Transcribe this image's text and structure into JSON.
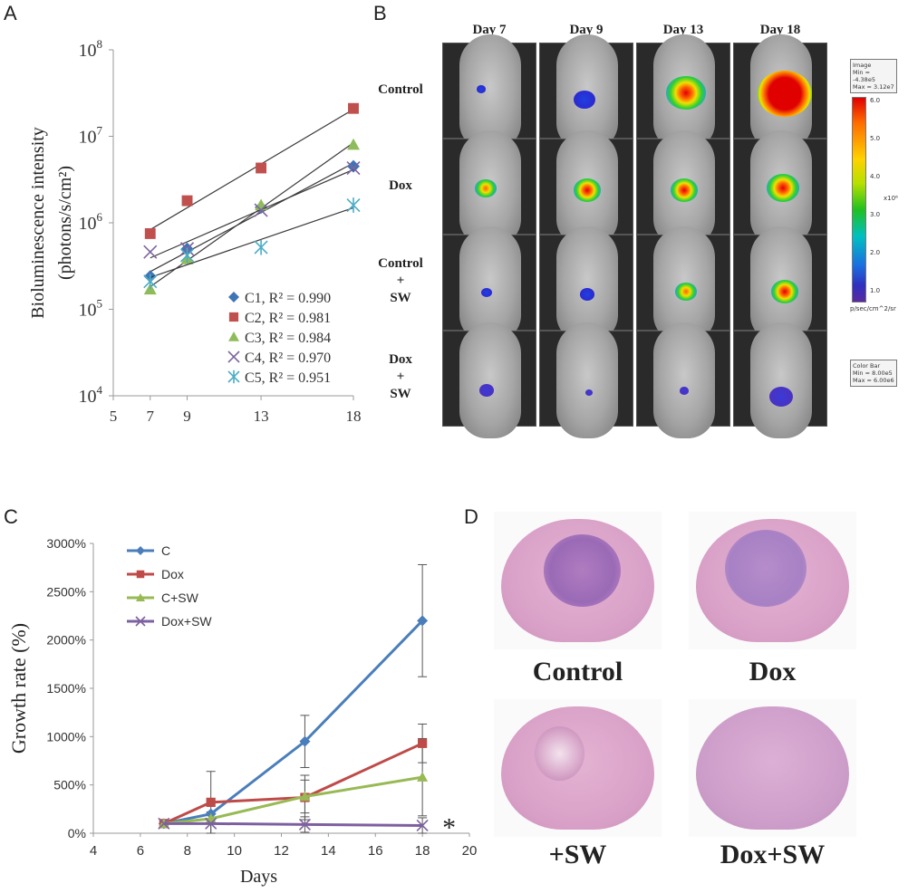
{
  "panels": {
    "a": "A",
    "b": "B",
    "c": "C",
    "d": "D"
  },
  "chart_data": [
    {
      "panel": "A",
      "type": "scatter",
      "scale": "log",
      "xlabel": "",
      "ylabel_line1": "Bioluminescence intensity",
      "ylabel_line2": "(photons/s/cm²)",
      "xlim": [
        5,
        18
      ],
      "xticks": [
        "5",
        "7",
        "9",
        "13",
        "18"
      ],
      "ylim": [
        10000,
        100000000
      ],
      "yticks": [
        {
          "value": 10000,
          "base": "10",
          "exp": "4"
        },
        {
          "value": 100000,
          "base": "10",
          "exp": "5"
        },
        {
          "value": 1000000,
          "base": "10",
          "exp": "6"
        },
        {
          "value": 10000000,
          "base": "10",
          "exp": "7"
        },
        {
          "value": 100000000,
          "base": "10",
          "exp": "8"
        }
      ],
      "x": [
        7,
        9,
        13,
        18
      ],
      "series": [
        {
          "name": "C1",
          "legend": "C1, R² = 0.990",
          "marker": "diamond",
          "color": "#3f74b5",
          "values": [
            240000,
            500000,
            1500000,
            4500000
          ]
        },
        {
          "name": "C2",
          "legend": "C2, R² = 0.981",
          "marker": "square",
          "color": "#c0504d",
          "values": [
            750000,
            1800000,
            4300000,
            21000000
          ]
        },
        {
          "name": "C3",
          "legend": "C3, R² = 0.984",
          "marker": "triangle",
          "color": "#8fbc5a",
          "values": [
            170000,
            380000,
            1600000,
            8000000
          ]
        },
        {
          "name": "C4",
          "legend": "C4, R² = 0.970",
          "marker": "x",
          "color": "#7e649e",
          "values": [
            460000,
            500000,
            1400000,
            4300000
          ]
        },
        {
          "name": "C5",
          "legend": "C5, R² = 0.951",
          "marker": "star",
          "color": "#4bacc6",
          "values": [
            210000,
            420000,
            520000,
            1600000
          ]
        }
      ]
    },
    {
      "panel": "C",
      "type": "line",
      "xlabel": "Days",
      "ylabel": "Growth rate (%)",
      "xlim": [
        4,
        20
      ],
      "xticks": [
        "4",
        "6",
        "8",
        "10",
        "12",
        "14",
        "16",
        "18",
        "20"
      ],
      "ylim": [
        0,
        3000
      ],
      "yticks": [
        "0%",
        "500%",
        "1000%",
        "1500%",
        "2000%",
        "2500%",
        "3000%"
      ],
      "annotation": "*",
      "x": [
        7,
        9,
        13,
        18
      ],
      "series": [
        {
          "name": "C",
          "marker": "diamond",
          "color": "#4a7ebb",
          "values": [
            100,
            200,
            950,
            2200
          ],
          "err": [
            0,
            0,
            270,
            580
          ]
        },
        {
          "name": "Dox",
          "marker": "square",
          "color": "#be4b48",
          "values": [
            100,
            320,
            370,
            930
          ],
          "err": [
            0,
            320,
            230,
            200
          ]
        },
        {
          "name": "C+SW",
          "marker": "triangle",
          "color": "#98b954",
          "values": [
            100,
            150,
            380,
            580
          ],
          "err": [
            0,
            0,
            170,
            400
          ]
        },
        {
          "name": "Dox+SW",
          "marker": "x",
          "color": "#7d60a0",
          "values": [
            100,
            100,
            90,
            80
          ],
          "err": [
            0,
            120,
            80,
            80
          ]
        }
      ]
    }
  ],
  "imaging": {
    "days": [
      "Day 7",
      "Day 9",
      "Day 13",
      "Day 18"
    ],
    "rows": [
      {
        "line1": "Control",
        "line2": "",
        "line3": ""
      },
      {
        "line1": "Dox",
        "line2": "",
        "line3": ""
      },
      {
        "line1": "Control",
        "line2": "+",
        "line3": "SW"
      },
      {
        "line1": "Dox",
        "line2": "+",
        "line3": "SW"
      }
    ],
    "image_box": {
      "title": "Image",
      "min": "Min = -4.38e5",
      "max": "Max = 3.12e7"
    },
    "colorbar_ticks": [
      "6.0",
      "5.0",
      "4.0",
      "3.0",
      "2.0",
      "1.0"
    ],
    "colorbar_scale": "x10⁶",
    "colorbar_units": "p/sec/cm^2/sr",
    "color_bar_box": {
      "title": "Color Bar",
      "min": "Min = 8.00e5",
      "max": "Max = 6.00e6"
    }
  },
  "histology": {
    "labels": [
      "Control",
      "Dox",
      "+SW",
      "Dox+SW"
    ]
  }
}
